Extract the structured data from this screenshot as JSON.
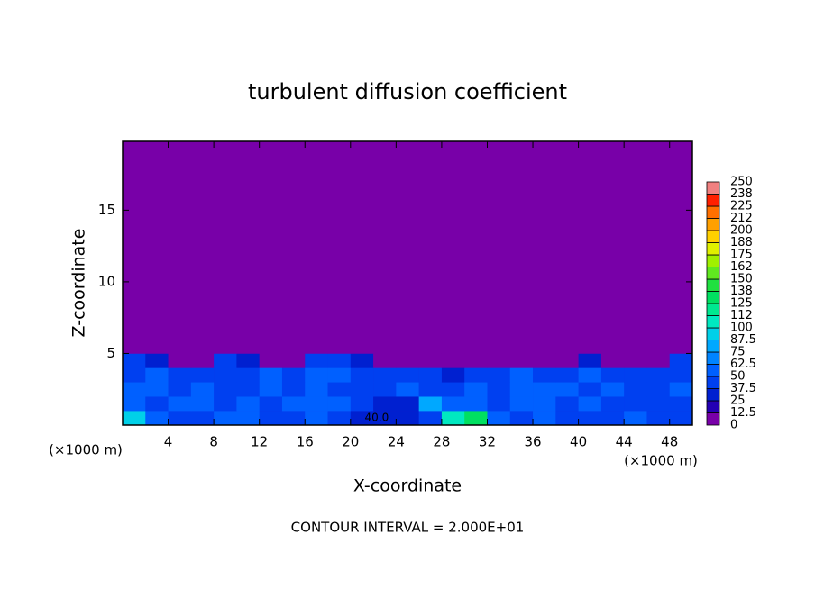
{
  "chart_data": {
    "type": "contour",
    "title": "turbulent diffusion coefficient",
    "x_label": "X-coordinate",
    "y_label": "Z-coordinate",
    "x_unit_label": "(×1000 m)",
    "y_unit_label": "(×1000 m)",
    "note": "CONTOUR INTERVAL = 2.000E+01",
    "annotations": [
      "40.0"
    ],
    "xlim": [
      0,
      50
    ],
    "xticks": [
      4,
      8,
      12,
      16,
      20,
      24,
      28,
      32,
      36,
      40,
      44,
      48
    ],
    "ylim": [
      0,
      19.8
    ],
    "yticks": [
      5,
      10,
      15
    ],
    "levels": [
      0,
      12.5,
      25,
      37.5,
      50,
      62.5,
      75,
      87.5,
      100,
      112,
      125,
      138,
      150,
      162,
      175,
      188,
      200,
      212,
      225,
      238,
      250
    ],
    "colors": [
      "#7800a8",
      "#2400b4",
      "#0020d0",
      "#0040f0",
      "#0060ff",
      "#0084ff",
      "#00a8ff",
      "#00d0e8",
      "#00e8c0",
      "#00e890",
      "#00e060",
      "#20e040",
      "#60e820",
      "#a0f000",
      "#e0f000",
      "#ffd000",
      "#ffa000",
      "#ff7000",
      "#ff2000",
      "#f08080"
    ],
    "field": {
      "x_edges": [
        0,
        2,
        4,
        6,
        8,
        10,
        12,
        14,
        16,
        18,
        20,
        22,
        24,
        26,
        28,
        30,
        32,
        34,
        36,
        38,
        40,
        42,
        44,
        46,
        48,
        50
      ],
      "z_edges": [
        0,
        1,
        2,
        3,
        4,
        5,
        6
      ],
      "values": [
        [
          90,
          50,
          40,
          45,
          60,
          55,
          45,
          40,
          50,
          45,
          30,
          25,
          25,
          40,
          100,
          125,
          60,
          45,
          50,
          45,
          40,
          45,
          50,
          45,
          40
        ],
        [
          55,
          45,
          50,
          55,
          45,
          50,
          40,
          50,
          55,
          50,
          40,
          30,
          35,
          80,
          60,
          50,
          45,
          50,
          55,
          45,
          50,
          45,
          45,
          40,
          45
        ],
        [
          50,
          55,
          45,
          50,
          40,
          45,
          55,
          45,
          50,
          45,
          45,
          40,
          50,
          45,
          45,
          50,
          45,
          55,
          50,
          50,
          45,
          50,
          40,
          45,
          50
        ],
        [
          45,
          50,
          40,
          45,
          45,
          40,
          50,
          40,
          55,
          50,
          45,
          40,
          45,
          40,
          35,
          45,
          40,
          50,
          45,
          45,
          50,
          45,
          40,
          45,
          45
        ],
        [
          40,
          35,
          5,
          5,
          40,
          30,
          5,
          5,
          45,
          40,
          35,
          5,
          5,
          5,
          5,
          5,
          5,
          5,
          5,
          5,
          30,
          5,
          5,
          5,
          40
        ],
        [
          5,
          5,
          5,
          5,
          5,
          5,
          5,
          5,
          5,
          10,
          5,
          5,
          5,
          5,
          5,
          5,
          5,
          5,
          5,
          5,
          5,
          5,
          5,
          5,
          5
        ]
      ]
    }
  }
}
